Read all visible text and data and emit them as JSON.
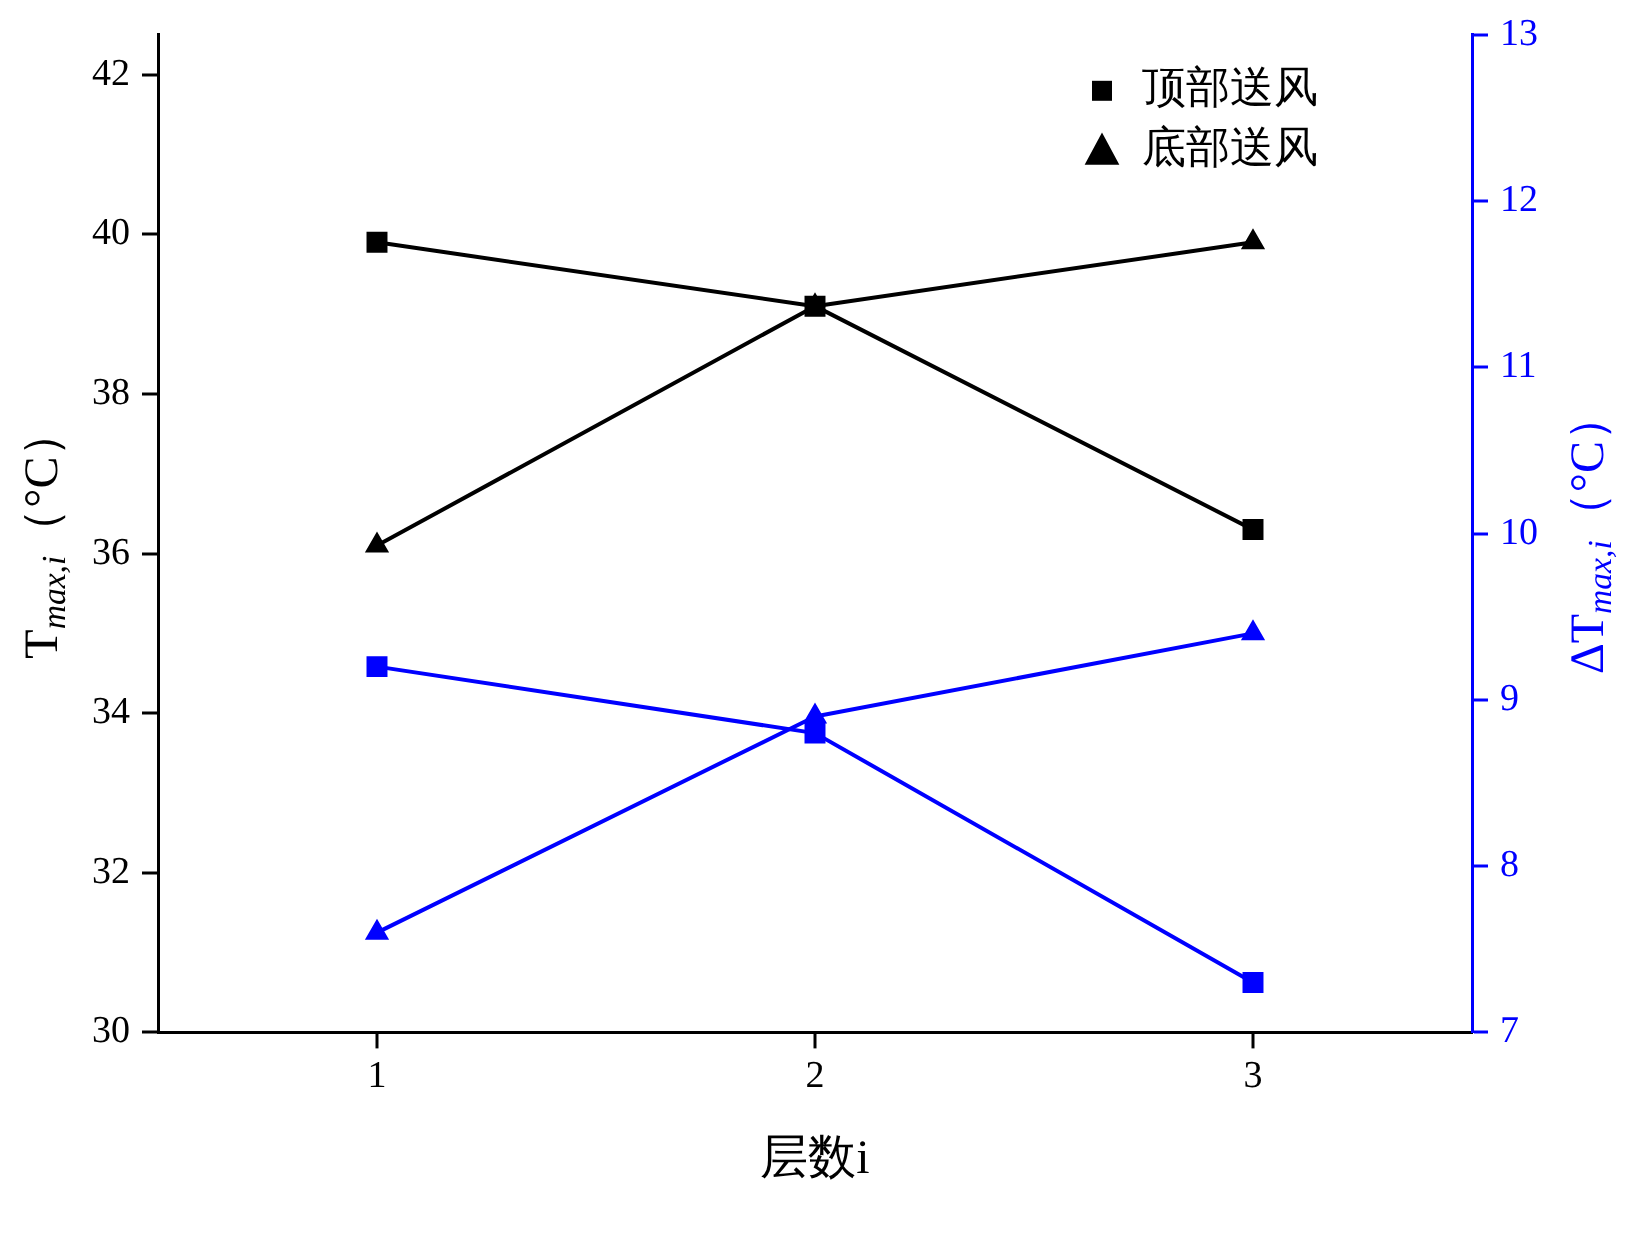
{
  "chart_data": {
    "type": "line",
    "xlabel": "层数i",
    "ylabel": "T$_{max,i}$（°C）",
    "y2label": "ΔT$_{max,i}$（°C）",
    "categories": [
      "1",
      "2",
      "3"
    ],
    "series": [
      {
        "name": "顶部送风",
        "color": "#000000",
        "marker": "square",
        "values": [
          39.9,
          39.1,
          36.3
        ]
      },
      {
        "name": "底部送风",
        "color": "#000000",
        "marker": "triangle",
        "values": [
          36.1,
          39.1,
          39.9
        ]
      },
      {
        "color": "#0000ff",
        "marker": "square",
        "axis": "y2",
        "values": [
          9.2,
          8.8,
          7.3
        ]
      },
      {
        "color": "#0000ff",
        "marker": "triangle",
        "axis": "y2",
        "values": [
          7.6,
          8.9,
          9.4
        ]
      }
    ],
    "ylim": [
      30,
      42.5
    ],
    "yticks": [
      30,
      32,
      34,
      36,
      38,
      40,
      42
    ],
    "y2lim": [
      7,
      13
    ],
    "y2ticks": [
      7,
      8,
      9,
      10,
      11,
      12,
      13
    ],
    "grid": false,
    "legend": "top right",
    "line_style": "solid"
  }
}
